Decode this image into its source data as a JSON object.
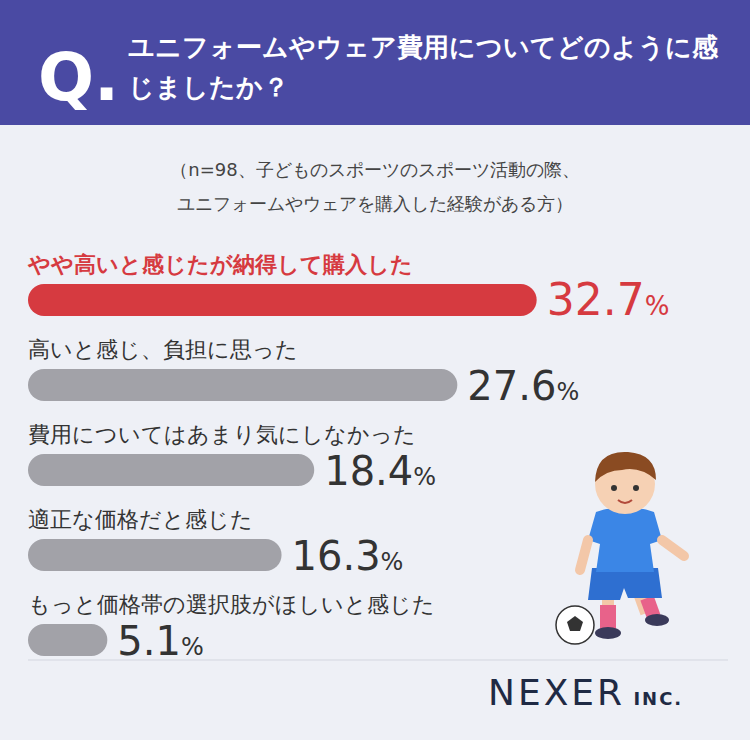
{
  "chart_data": {
    "type": "bar",
    "orientation": "horizontal",
    "question_label": "Q.",
    "title": "ユニフォームやウェア費用についてどのように感じましたか？",
    "subtitle": "（n=98、子どものスポーツのスポーツ活動の際、ユニフォームやウェアを購入した経験がある方）",
    "categories": [
      "やや高いと感じたが納得して購入した",
      "高いと感じ、負担に思った",
      "費用についてはあまり気にしなかった",
      "適正な価格だと感じた",
      "もっと価格帯の選択肢がほしいと感じた"
    ],
    "values": [
      32.7,
      27.6,
      18.4,
      16.3,
      5.1
    ],
    "value_labels": [
      "32.7%",
      "27.6%",
      "18.4%",
      "16.3%",
      "5.1%"
    ],
    "colors": [
      "#d63a40",
      "#a2a2a8",
      "#a2a2a8",
      "#a2a2a8",
      "#a2a2a8"
    ],
    "xlim": [
      0,
      45
    ],
    "data_labels": true,
    "tick_labels": false,
    "grid": false,
    "source": "NEXER INC."
  }
}
